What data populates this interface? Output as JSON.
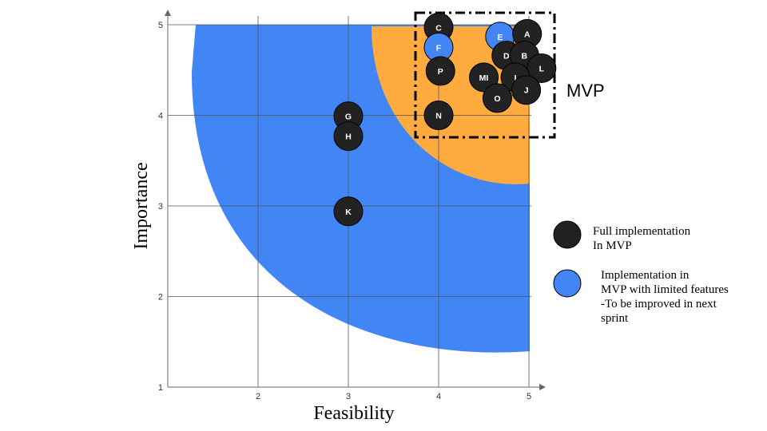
{
  "chart_data": {
    "type": "scatter",
    "title": "",
    "xlabel": "Feasibility",
    "ylabel": "Importance",
    "xlim": [
      1,
      5.2
    ],
    "ylim": [
      1,
      5.2
    ],
    "x_ticks": [
      "2",
      "3",
      "4",
      "5"
    ],
    "y_ticks": [
      "1",
      "2",
      "3",
      "4",
      "5"
    ],
    "grid": true,
    "points": [
      {
        "label": "C",
        "x": 4.0,
        "y": 4.97,
        "category": "full"
      },
      {
        "label": "F",
        "x": 4.0,
        "y": 4.75,
        "category": "limited"
      },
      {
        "label": "P",
        "x": 4.02,
        "y": 4.49,
        "category": "full"
      },
      {
        "label": "N",
        "x": 4.0,
        "y": 4.0,
        "category": "full"
      },
      {
        "label": "E",
        "x": 4.68,
        "y": 4.87,
        "category": "limited"
      },
      {
        "label": "A",
        "x": 4.98,
        "y": 4.9,
        "category": "full"
      },
      {
        "label": "D",
        "x": 4.75,
        "y": 4.66,
        "category": "full"
      },
      {
        "label": "B",
        "x": 4.95,
        "y": 4.66,
        "category": "full"
      },
      {
        "label": "L",
        "x": 5.14,
        "y": 4.52,
        "category": "full"
      },
      {
        "label": "MI",
        "x": 4.5,
        "y": 4.42,
        "category": "full"
      },
      {
        "label": "I",
        "x": 4.85,
        "y": 4.42,
        "category": "full"
      },
      {
        "label": "J",
        "x": 4.97,
        "y": 4.28,
        "category": "full"
      },
      {
        "label": "O",
        "x": 4.65,
        "y": 4.19,
        "category": "full"
      },
      {
        "label": "G",
        "x": 3.0,
        "y": 3.99,
        "category": "full"
      },
      {
        "label": "H",
        "x": 3.0,
        "y": 3.77,
        "category": "full"
      },
      {
        "label": "K",
        "x": 3.0,
        "y": 2.94,
        "category": "full"
      }
    ],
    "mvp_label": "MVP",
    "legend": [
      {
        "category": "full",
        "label": "Full implementation\nIn MVP"
      },
      {
        "category": "limited",
        "label": "Implementation in\nMVP with limited features\n-To be improved in next\nsprint"
      }
    ]
  },
  "colors": {
    "full": "#222222",
    "limited": "#4285f4",
    "blue_region": "#4285f4",
    "orange_region": "#ffab40",
    "grid": "#555555"
  }
}
